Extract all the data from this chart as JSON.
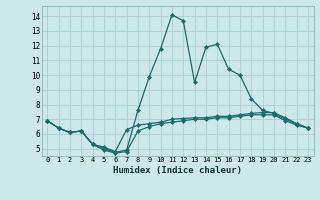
{
  "xlabel": "Humidex (Indice chaleur)",
  "bg_color": "#cde8e8",
  "grid_color": "#aacfcf",
  "line_color": "#1a6b6b",
  "spine_color": "#7ab0b0",
  "xlim": [
    -0.5,
    23.5
  ],
  "ylim": [
    4.5,
    14.7
  ],
  "yticks": [
    5,
    6,
    7,
    8,
    9,
    10,
    11,
    12,
    13,
    14
  ],
  "xticks": [
    0,
    1,
    2,
    3,
    4,
    5,
    6,
    7,
    8,
    9,
    10,
    11,
    12,
    13,
    14,
    15,
    16,
    17,
    18,
    19,
    20,
    21,
    22,
    23
  ],
  "line1_x": [
    0,
    1,
    2,
    3,
    4,
    5,
    6,
    7,
    8,
    9,
    10,
    11,
    12,
    13,
    14,
    15,
    16,
    17,
    18,
    19,
    20,
    21,
    22,
    23
  ],
  "line1_y": [
    6.9,
    6.4,
    6.1,
    6.2,
    5.3,
    4.9,
    4.7,
    4.8,
    6.2,
    6.5,
    6.7,
    6.8,
    6.9,
    7.0,
    7.0,
    7.1,
    7.1,
    7.2,
    7.3,
    7.3,
    7.3,
    6.9,
    6.6,
    6.4
  ],
  "line2_x": [
    0,
    1,
    2,
    3,
    4,
    5,
    6,
    7,
    8,
    9,
    10,
    11,
    12,
    13,
    14,
    15,
    16,
    17,
    18,
    19,
    20,
    21,
    22,
    23
  ],
  "line2_y": [
    6.9,
    6.4,
    6.1,
    6.2,
    5.3,
    5.0,
    4.75,
    4.9,
    7.6,
    9.9,
    11.8,
    14.1,
    13.7,
    9.5,
    11.9,
    12.1,
    10.4,
    10.0,
    8.4,
    7.6,
    7.4,
    7.0,
    6.7,
    6.4
  ],
  "line3_x": [
    0,
    1,
    2,
    3,
    4,
    5,
    6,
    7,
    8,
    9,
    10,
    11,
    12,
    13,
    14,
    15,
    16,
    17,
    18,
    19,
    20,
    21,
    22,
    23
  ],
  "line3_y": [
    6.9,
    6.4,
    6.1,
    6.2,
    5.3,
    5.1,
    4.8,
    6.3,
    6.6,
    6.7,
    6.8,
    7.0,
    7.05,
    7.1,
    7.1,
    7.2,
    7.2,
    7.3,
    7.4,
    7.45,
    7.45,
    7.1,
    6.7,
    6.4
  ]
}
